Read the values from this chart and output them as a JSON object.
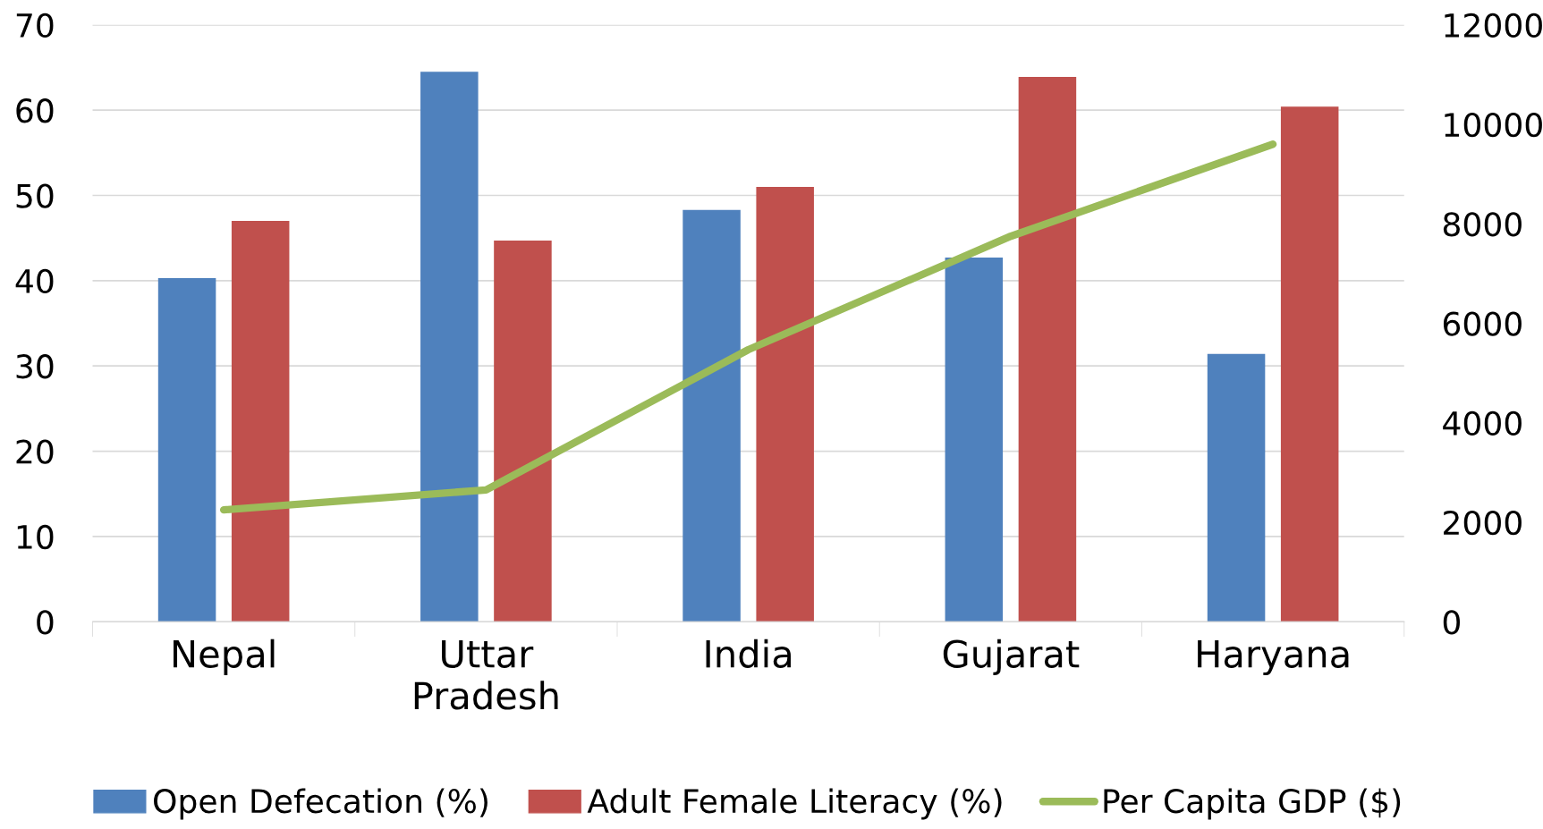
{
  "chart_data": {
    "type": "bar",
    "categories": [
      "Nepal",
      "Uttar\nPradesh",
      "India",
      "Gujarat",
      "Haryana"
    ],
    "series": [
      {
        "name": "Open Defecation (%)",
        "color": "#4f81bd",
        "values": [
          40.3,
          64.5,
          48.3,
          42.7,
          31.4
        ]
      },
      {
        "name": "Adult Female Literacy (%)",
        "color": "#c0504d",
        "values": [
          47.0,
          44.7,
          51.0,
          63.9,
          60.4
        ]
      },
      {
        "name": "Per Capita GDP ($)",
        "color": "#9bbb59",
        "type": "line",
        "axis": "y2",
        "values": [
          2250,
          2650,
          5470,
          7750,
          9600
        ]
      }
    ],
    "ylim": [
      0,
      70
    ],
    "yticks": [
      0,
      10,
      20,
      30,
      40,
      50,
      60,
      70
    ],
    "y2lim": [
      0,
      12000
    ],
    "y2ticks": [
      0,
      2000,
      4000,
      6000,
      8000,
      10000,
      12000
    ],
    "grid": "y",
    "legend": "bottom",
    "marker": "none",
    "line_style": "solid"
  }
}
